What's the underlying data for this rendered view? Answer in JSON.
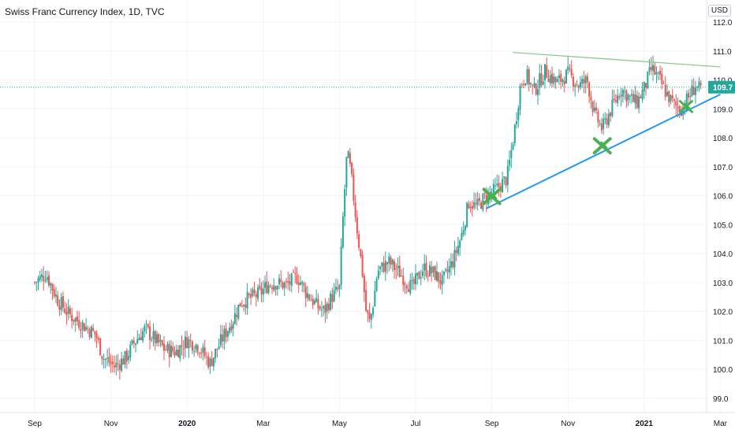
{
  "header": {
    "title": "Swiss Franc Currency Index, 1D, TVC",
    "currency": "USD"
  },
  "chart_data": {
    "type": "candlestick",
    "y_ticks": [
      "112.0",
      "111.0",
      "110.0",
      "109.0",
      "108.0",
      "107.0",
      "106.0",
      "105.0",
      "104.0",
      "103.0",
      "102.0",
      "101.0",
      "100.0",
      "99.0"
    ],
    "x_ticks": [
      {
        "label": "Sep",
        "bold": false
      },
      {
        "label": "Nov",
        "bold": false
      },
      {
        "label": "2020",
        "bold": true
      },
      {
        "label": "Mar",
        "bold": false
      },
      {
        "label": "May",
        "bold": false
      },
      {
        "label": "Jul",
        "bold": false
      },
      {
        "label": "Sep",
        "bold": false
      },
      {
        "label": "Nov",
        "bold": false
      },
      {
        "label": "2021",
        "bold": true
      },
      {
        "label": "Mar",
        "bold": false
      }
    ],
    "ylim": [
      98.8,
      112.3
    ],
    "last_price": "109.7",
    "last_price_value": 109.75,
    "colors": {
      "up": "#26a69a",
      "down": "#ef5350",
      "price_line": "#26a69a",
      "support_line": "#2196f3",
      "resistance_line": "#81c784",
      "marker": "#4caf50"
    },
    "trendlines": [
      {
        "name": "resistance",
        "from": {
          "month": 12.55,
          "value": 110.95
        },
        "to": {
          "month": 18.0,
          "value": 110.45
        }
      },
      {
        "name": "support",
        "from": {
          "month": 11.85,
          "value": 105.55
        },
        "to": {
          "month": 18.0,
          "value": 109.5
        }
      }
    ],
    "markers": [
      {
        "month": 12.0,
        "value": 106.0
      },
      {
        "month": 14.9,
        "value": 107.75
      },
      {
        "month": 17.1,
        "value": 109.1
      }
    ],
    "series_path": [
      [
        0.0,
        103.0
      ],
      [
        0.3,
        103.3
      ],
      [
        0.6,
        102.4
      ],
      [
        0.9,
        101.9
      ],
      [
        1.3,
        101.5
      ],
      [
        1.6,
        101.2
      ],
      [
        1.8,
        100.4
      ],
      [
        2.1,
        100.1
      ],
      [
        2.4,
        100.4
      ],
      [
        2.6,
        100.9
      ],
      [
        2.9,
        101.4
      ],
      [
        3.1,
        101.1
      ],
      [
        3.4,
        100.7
      ],
      [
        3.7,
        100.6
      ],
      [
        4.0,
        101.0
      ],
      [
        4.3,
        100.8
      ],
      [
        4.6,
        100.2
      ],
      [
        4.9,
        101.0
      ],
      [
        5.2,
        101.7
      ],
      [
        5.4,
        102.3
      ],
      [
        5.7,
        102.5
      ],
      [
        5.9,
        102.6
      ],
      [
        6.1,
        102.9
      ],
      [
        6.3,
        103.0
      ],
      [
        6.6,
        102.9
      ],
      [
        6.9,
        103.2
      ],
      [
        7.1,
        102.7
      ],
      [
        7.4,
        102.2
      ],
      [
        7.6,
        102.0
      ],
      [
        7.8,
        102.5
      ],
      [
        8.0,
        102.8
      ],
      [
        8.1,
        105.4
      ],
      [
        8.2,
        107.5
      ],
      [
        8.3,
        106.8
      ],
      [
        8.45,
        105.0
      ],
      [
        8.6,
        103.4
      ],
      [
        8.7,
        102.0
      ],
      [
        8.8,
        101.6
      ],
      [
        8.9,
        102.4
      ],
      [
        9.0,
        103.4
      ],
      [
        9.3,
        103.7
      ],
      [
        9.6,
        103.3
      ],
      [
        9.9,
        102.8
      ],
      [
        10.2,
        103.5
      ],
      [
        10.5,
        103.3
      ],
      [
        10.7,
        103.0
      ],
      [
        11.0,
        103.8
      ],
      [
        11.2,
        104.6
      ],
      [
        11.4,
        105.8
      ],
      [
        11.6,
        105.6
      ],
      [
        11.8,
        105.9
      ],
      [
        12.1,
        106.2
      ],
      [
        12.4,
        106.6
      ],
      [
        12.6,
        108.3
      ],
      [
        12.75,
        109.8
      ],
      [
        12.9,
        110.2
      ],
      [
        13.1,
        109.6
      ],
      [
        13.4,
        110.3
      ],
      [
        13.7,
        109.9
      ],
      [
        14.0,
        110.2
      ],
      [
        14.3,
        109.8
      ],
      [
        14.5,
        110.0
      ],
      [
        14.7,
        108.8
      ],
      [
        14.9,
        108.3
      ],
      [
        15.1,
        108.9
      ],
      [
        15.4,
        109.7
      ],
      [
        15.6,
        109.4
      ],
      [
        15.8,
        109.2
      ],
      [
        16.0,
        109.7
      ],
      [
        16.2,
        110.4
      ],
      [
        16.4,
        110.0
      ],
      [
        16.6,
        109.5
      ],
      [
        16.8,
        109.1
      ],
      [
        17.0,
        109.0
      ],
      [
        17.2,
        109.5
      ],
      [
        17.35,
        109.8
      ],
      [
        17.5,
        109.6
      ]
    ]
  }
}
